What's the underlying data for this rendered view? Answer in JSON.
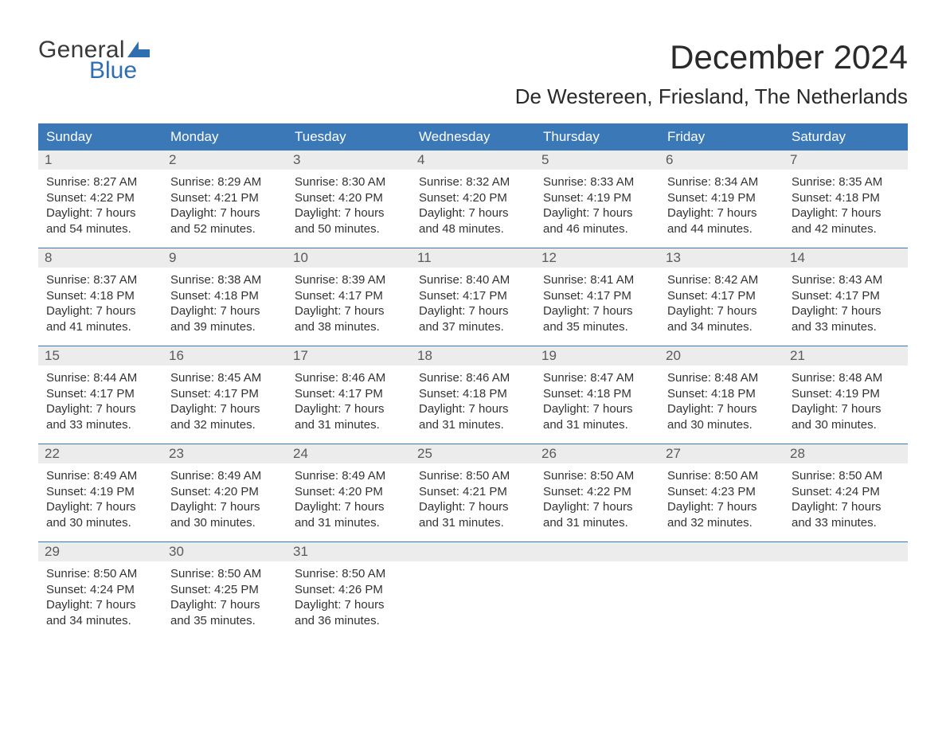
{
  "logo": {
    "line1": "General",
    "line2": "Blue"
  },
  "header": {
    "title": "December 2024",
    "location": "De Westereen, Friesland, The Netherlands"
  },
  "colors": {
    "header_bg": "#3a78b8",
    "header_text": "#ffffff",
    "daynum_bg": "#ececec",
    "daynum_text": "#5a5a5a",
    "body_text": "#333333",
    "separator": "#3a78b8",
    "logo_gray": "#3a3a3a",
    "logo_blue": "#2f6fb0",
    "background": "#ffffff"
  },
  "typography": {
    "title_fontsize": 42,
    "location_fontsize": 26,
    "dow_fontsize": 17,
    "daynum_fontsize": 17,
    "cell_fontsize": 15,
    "logo_fontsize": 30,
    "font_family": "Arial"
  },
  "daysOfWeek": [
    "Sunday",
    "Monday",
    "Tuesday",
    "Wednesday",
    "Thursday",
    "Friday",
    "Saturday"
  ],
  "labels": {
    "sunrise_prefix": "Sunrise: ",
    "sunset_prefix": "Sunset: ",
    "daylight_prefix": "Daylight: ",
    "daylight_hours_word": " hours",
    "daylight_minutes_suffix": " minutes.",
    "daylight_and": "and "
  },
  "weeks": [
    [
      {
        "day": "1",
        "sunrise": "8:27 AM",
        "sunset": "4:22 PM",
        "dl_h": "7",
        "dl_m": "54"
      },
      {
        "day": "2",
        "sunrise": "8:29 AM",
        "sunset": "4:21 PM",
        "dl_h": "7",
        "dl_m": "52"
      },
      {
        "day": "3",
        "sunrise": "8:30 AM",
        "sunset": "4:20 PM",
        "dl_h": "7",
        "dl_m": "50"
      },
      {
        "day": "4",
        "sunrise": "8:32 AM",
        "sunset": "4:20 PM",
        "dl_h": "7",
        "dl_m": "48"
      },
      {
        "day": "5",
        "sunrise": "8:33 AM",
        "sunset": "4:19 PM",
        "dl_h": "7",
        "dl_m": "46"
      },
      {
        "day": "6",
        "sunrise": "8:34 AM",
        "sunset": "4:19 PM",
        "dl_h": "7",
        "dl_m": "44"
      },
      {
        "day": "7",
        "sunrise": "8:35 AM",
        "sunset": "4:18 PM",
        "dl_h": "7",
        "dl_m": "42"
      }
    ],
    [
      {
        "day": "8",
        "sunrise": "8:37 AM",
        "sunset": "4:18 PM",
        "dl_h": "7",
        "dl_m": "41"
      },
      {
        "day": "9",
        "sunrise": "8:38 AM",
        "sunset": "4:18 PM",
        "dl_h": "7",
        "dl_m": "39"
      },
      {
        "day": "10",
        "sunrise": "8:39 AM",
        "sunset": "4:17 PM",
        "dl_h": "7",
        "dl_m": "38"
      },
      {
        "day": "11",
        "sunrise": "8:40 AM",
        "sunset": "4:17 PM",
        "dl_h": "7",
        "dl_m": "37"
      },
      {
        "day": "12",
        "sunrise": "8:41 AM",
        "sunset": "4:17 PM",
        "dl_h": "7",
        "dl_m": "35"
      },
      {
        "day": "13",
        "sunrise": "8:42 AM",
        "sunset": "4:17 PM",
        "dl_h": "7",
        "dl_m": "34"
      },
      {
        "day": "14",
        "sunrise": "8:43 AM",
        "sunset": "4:17 PM",
        "dl_h": "7",
        "dl_m": "33"
      }
    ],
    [
      {
        "day": "15",
        "sunrise": "8:44 AM",
        "sunset": "4:17 PM",
        "dl_h": "7",
        "dl_m": "33"
      },
      {
        "day": "16",
        "sunrise": "8:45 AM",
        "sunset": "4:17 PM",
        "dl_h": "7",
        "dl_m": "32"
      },
      {
        "day": "17",
        "sunrise": "8:46 AM",
        "sunset": "4:17 PM",
        "dl_h": "7",
        "dl_m": "31"
      },
      {
        "day": "18",
        "sunrise": "8:46 AM",
        "sunset": "4:18 PM",
        "dl_h": "7",
        "dl_m": "31"
      },
      {
        "day": "19",
        "sunrise": "8:47 AM",
        "sunset": "4:18 PM",
        "dl_h": "7",
        "dl_m": "31"
      },
      {
        "day": "20",
        "sunrise": "8:48 AM",
        "sunset": "4:18 PM",
        "dl_h": "7",
        "dl_m": "30"
      },
      {
        "day": "21",
        "sunrise": "8:48 AM",
        "sunset": "4:19 PM",
        "dl_h": "7",
        "dl_m": "30"
      }
    ],
    [
      {
        "day": "22",
        "sunrise": "8:49 AM",
        "sunset": "4:19 PM",
        "dl_h": "7",
        "dl_m": "30"
      },
      {
        "day": "23",
        "sunrise": "8:49 AM",
        "sunset": "4:20 PM",
        "dl_h": "7",
        "dl_m": "30"
      },
      {
        "day": "24",
        "sunrise": "8:49 AM",
        "sunset": "4:20 PM",
        "dl_h": "7",
        "dl_m": "31"
      },
      {
        "day": "25",
        "sunrise": "8:50 AM",
        "sunset": "4:21 PM",
        "dl_h": "7",
        "dl_m": "31"
      },
      {
        "day": "26",
        "sunrise": "8:50 AM",
        "sunset": "4:22 PM",
        "dl_h": "7",
        "dl_m": "31"
      },
      {
        "day": "27",
        "sunrise": "8:50 AM",
        "sunset": "4:23 PM",
        "dl_h": "7",
        "dl_m": "32"
      },
      {
        "day": "28",
        "sunrise": "8:50 AM",
        "sunset": "4:24 PM",
        "dl_h": "7",
        "dl_m": "33"
      }
    ],
    [
      {
        "day": "29",
        "sunrise": "8:50 AM",
        "sunset": "4:24 PM",
        "dl_h": "7",
        "dl_m": "34"
      },
      {
        "day": "30",
        "sunrise": "8:50 AM",
        "sunset": "4:25 PM",
        "dl_h": "7",
        "dl_m": "35"
      },
      {
        "day": "31",
        "sunrise": "8:50 AM",
        "sunset": "4:26 PM",
        "dl_h": "7",
        "dl_m": "36"
      },
      null,
      null,
      null,
      null
    ]
  ]
}
